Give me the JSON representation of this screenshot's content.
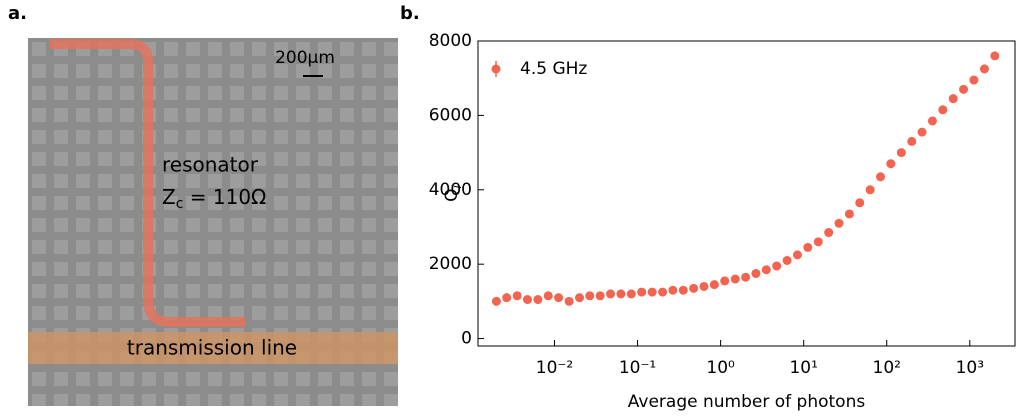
{
  "panel_labels": [
    "a.",
    "b."
  ],
  "micrograph": {
    "scale_bar": "200µm",
    "resonator": "resonator",
    "impedance": {
      "symbol": "Z",
      "subscript": "c",
      "value": " = 110Ω"
    },
    "feedline": "transmission line"
  },
  "chart_data": {
    "type": "scatter",
    "xlabel": "Average number of photons",
    "ylabel": {
      "symbol": "Q",
      "subscript": "i"
    },
    "xscale": "log",
    "xlim": [
      0.0012,
      3500
    ],
    "xticks": [
      {
        "value": 0.01,
        "label": "10⁻²"
      },
      {
        "value": 0.1,
        "label": "10⁻¹"
      },
      {
        "value": 1,
        "label": "10⁰"
      },
      {
        "value": 10,
        "label": "10¹"
      },
      {
        "value": 100,
        "label": "10²"
      },
      {
        "value": 1000,
        "label": "10³"
      }
    ],
    "ylim": [
      -200,
      8000
    ],
    "yticks": [
      0,
      2000,
      4000,
      6000,
      8000
    ],
    "legend": "upper left",
    "x": [
      0.002,
      0.00266,
      0.00355,
      0.00473,
      0.00631,
      0.00841,
      0.0112,
      0.015,
      0.02,
      0.0266,
      0.0355,
      0.0473,
      0.0631,
      0.0841,
      0.112,
      0.15,
      0.2,
      0.266,
      0.355,
      0.473,
      0.631,
      0.841,
      1.12,
      1.5,
      2,
      2.66,
      3.55,
      4.73,
      6.31,
      8.41,
      11.2,
      15,
      20,
      26.6,
      35.5,
      47.3,
      63.1,
      84.1,
      112,
      150,
      200,
      266,
      355,
      473,
      631,
      841,
      1120,
      1500,
      2000
    ],
    "series": [
      {
        "name": "4.5 GHz",
        "color": "#f26450",
        "values": [
          1000,
          1100,
          1150,
          1050,
          1050,
          1150,
          1100,
          1000,
          1100,
          1150,
          1150,
          1200,
          1200,
          1200,
          1250,
          1250,
          1250,
          1300,
          1300,
          1350,
          1400,
          1450,
          1550,
          1600,
          1650,
          1750,
          1850,
          1950,
          2100,
          2250,
          2450,
          2600,
          2850,
          3100,
          3350,
          3650,
          4000,
          4350,
          4700,
          5000,
          5300,
          5550,
          5850,
          6150,
          6450,
          6700,
          6950,
          7250,
          7600
        ]
      }
    ]
  }
}
